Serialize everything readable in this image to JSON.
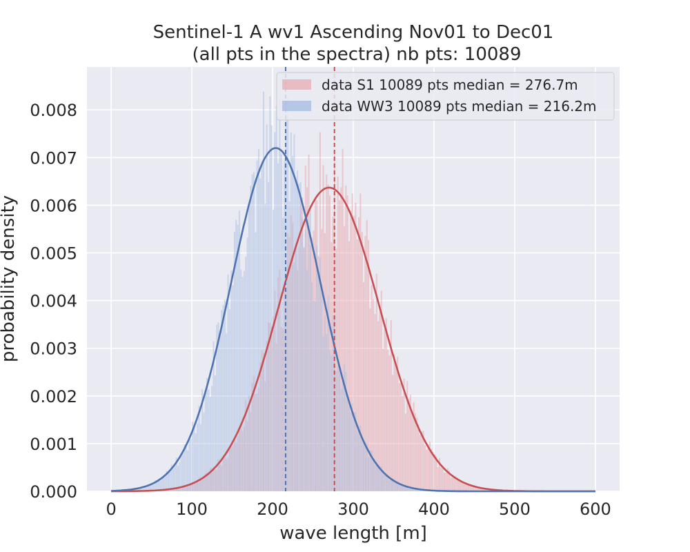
{
  "chart_data": {
    "type": "histogram",
    "title_line1": "Sentinel-1 A wv1 Ascending Nov01 to Dec01",
    "title_line2": "(all pts in the spectra) nb pts: 10089",
    "xlabel": "wave length [m]",
    "ylabel": "probability density",
    "xlim": [
      -30,
      630
    ],
    "ylim": [
      0,
      0.0089
    ],
    "x_ticks": [
      "0",
      "100",
      "200",
      "300",
      "400",
      "500",
      "600"
    ],
    "x_tick_values": [
      0,
      100,
      200,
      300,
      400,
      500,
      600
    ],
    "y_ticks": [
      "0.000",
      "0.001",
      "0.002",
      "0.003",
      "0.004",
      "0.005",
      "0.006",
      "0.007",
      "0.008"
    ],
    "y_tick_values": [
      0.0,
      0.001,
      0.002,
      0.003,
      0.004,
      0.005,
      0.006,
      0.007,
      0.008
    ],
    "grid": true,
    "legend_position": "top-right",
    "series": [
      {
        "name": "data S1 10089 pts median = 276.7m",
        "color": "#c44e52",
        "hist_color": "#e7a8ab",
        "median": 276.7,
        "fit_peak_x": 270,
        "fit_peak_density": 0.00637,
        "fit_std": 62.6
      },
      {
        "name": "data WW3 10089 pts median = 216.2m",
        "color": "#4c72b0",
        "hist_color": "#a8bde2",
        "median": 216.2,
        "fit_peak_x": 204,
        "fit_peak_density": 0.0072,
        "fit_std": 55.4
      }
    ]
  }
}
